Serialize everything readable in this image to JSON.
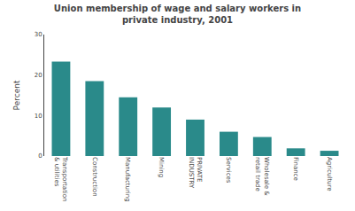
{
  "chart_data": {
    "type": "bar",
    "title": "Union membership of wage and salary workers in\nprivate industry, 2001",
    "categories": [
      "Transportation\n& utilities",
      "Construction",
      "Manufacturing",
      "Mining",
      "PRIVATE\nINDUSTRY",
      "Services",
      "Wholesale &\nretail trade",
      "Finance",
      "Agriculture"
    ],
    "values": [
      23.3,
      18.5,
      14.5,
      12.0,
      9.0,
      6.0,
      4.7,
      1.9,
      1.3
    ],
    "color": "#2a8a8a",
    "ylabel": "Percent",
    "ylim": [
      0,
      30
    ],
    "yticks": [
      0,
      10,
      20,
      30
    ],
    "grid": false
  }
}
